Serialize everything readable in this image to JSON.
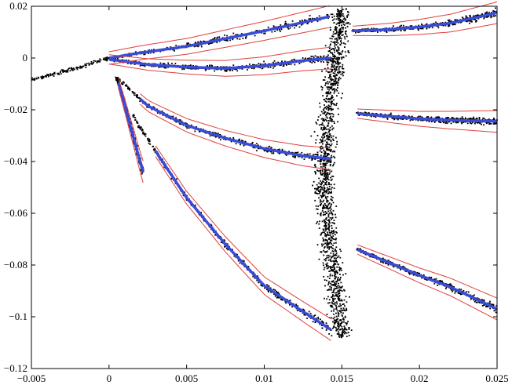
{
  "chart_data": {
    "type": "scatter",
    "title": "",
    "xlabel": "",
    "ylabel": "",
    "xlim": [
      -0.005,
      0.025
    ],
    "ylim": [
      -0.12,
      0.02
    ],
    "grid": false,
    "legend": "none",
    "x_ticks": [
      -0.005,
      0,
      0.005,
      0.01,
      0.015,
      0.02,
      0.025
    ],
    "x_tick_labels": [
      "−0.005",
      "0",
      "0.005",
      "0.01",
      "0.015",
      "0.02",
      "0.025"
    ],
    "y_ticks": [
      0.02,
      0,
      -0.02,
      -0.04,
      -0.06,
      -0.08,
      -0.1,
      -0.12
    ],
    "y_tick_labels": [
      "0.02",
      "0",
      "−0.02",
      "−0.04",
      "−0.06",
      "−0.08",
      "−0.1",
      "−0.12"
    ],
    "colors": {
      "points": "#000000",
      "fit": "#3a4bd8",
      "bound": "#e0403a"
    },
    "branches": [
      {
        "points": [
          [
            -0.005,
            -0.0085
          ],
          [
            -0.0025,
            -0.0045
          ],
          [
            0,
            0.0
          ],
          [
            0.002,
            0.002
          ],
          [
            0.005,
            0.0045
          ],
          [
            0.0075,
            0.0075
          ],
          [
            0.01,
            0.0105
          ],
          [
            0.0142,
            0.016
          ]
        ],
        "fit_from": 0.0
      },
      {
        "points": [
          [
            0.0157,
            0.0105
          ],
          [
            0.018,
            0.011
          ],
          [
            0.02,
            0.012
          ],
          [
            0.022,
            0.0135
          ],
          [
            0.025,
            0.0175
          ]
        ],
        "fit_from": 0.0157
      },
      {
        "points": [
          [
            0.0,
            -0.0005
          ],
          [
            0.0025,
            -0.0025
          ],
          [
            0.005,
            -0.0035
          ],
          [
            0.0075,
            -0.004
          ],
          [
            0.01,
            -0.003
          ],
          [
            0.0125,
            -0.001
          ],
          [
            0.0143,
            0.0
          ]
        ],
        "fit_from": 0.0
      },
      {
        "points": [
          [
            0.0005,
            -0.0075
          ],
          [
            0.0025,
            -0.0185
          ],
          [
            0.005,
            -0.026
          ],
          [
            0.0075,
            -0.031
          ],
          [
            0.01,
            -0.035
          ],
          [
            0.0125,
            -0.0378
          ],
          [
            0.0143,
            -0.039
          ]
        ],
        "fit_from": 0.002
      },
      {
        "points": [
          [
            0.016,
            -0.0215
          ],
          [
            0.018,
            -0.0225
          ],
          [
            0.02,
            -0.0235
          ],
          [
            0.022,
            -0.024
          ],
          [
            0.025,
            -0.0245
          ]
        ],
        "fit_from": 0.016
      },
      {
        "points": [
          [
            0.0005,
            -0.0075
          ],
          [
            0.001,
            -0.018
          ],
          [
            0.0015,
            -0.029
          ],
          [
            0.002,
            -0.04
          ],
          [
            0.0022,
            -0.044
          ]
        ],
        "fit_from": 0.0006
      },
      {
        "points": [
          [
            0.0015,
            -0.022
          ],
          [
            0.003,
            -0.036
          ],
          [
            0.005,
            -0.054
          ],
          [
            0.0075,
            -0.072
          ],
          [
            0.01,
            -0.088
          ],
          [
            0.0125,
            -0.098
          ],
          [
            0.0143,
            -0.105
          ]
        ],
        "fit_from": 0.003
      },
      {
        "points": [
          [
            0.016,
            -0.074
          ],
          [
            0.018,
            -0.079
          ],
          [
            0.02,
            -0.084
          ],
          [
            0.022,
            -0.0885
          ],
          [
            0.025,
            -0.097
          ]
        ],
        "fit_from": 0.016
      }
    ],
    "scatter_cloud": {
      "x_range": [
        0.0115,
        0.017
      ],
      "y_range": [
        -0.108,
        0.019
      ]
    }
  }
}
